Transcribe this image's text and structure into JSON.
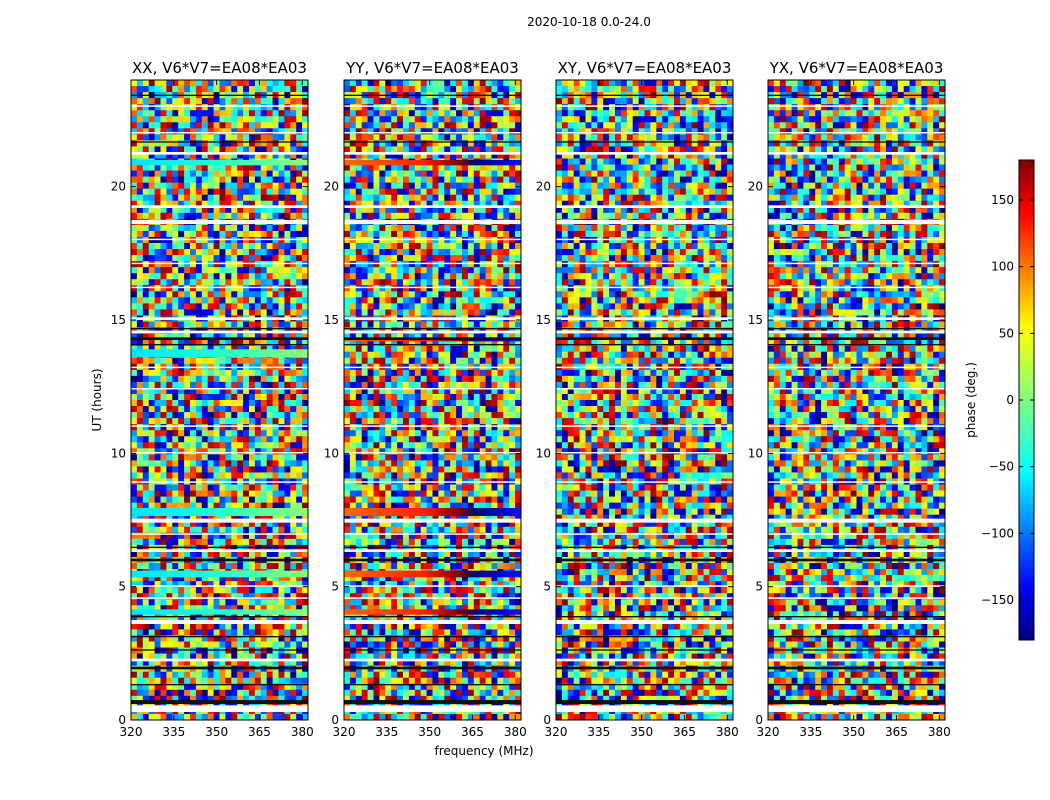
{
  "chart_data": {
    "type": "heatmap",
    "suptitle": "2020-10-18 0.0-24.0",
    "xlabel": "frequency (MHz)",
    "ylabel": "UT (hours)",
    "xlim": [
      320,
      382
    ],
    "ylim": [
      0,
      24
    ],
    "xticks": [
      "320",
      "335",
      "350",
      "365",
      "380"
    ],
    "yticks": [
      "0",
      "5",
      "10",
      "15",
      "20"
    ],
    "panels": [
      {
        "title": "XX, V6*V7=EA08*EA03"
      },
      {
        "title": "YY, V6*V7=EA08*EA03"
      },
      {
        "title": "XY, V6*V7=EA08*EA03"
      },
      {
        "title": "YX, V6*V7=EA08*EA03"
      }
    ],
    "colorbar": {
      "label": "phase (deg.)",
      "range": [
        -180,
        180
      ],
      "ticks": [
        "150",
        "100",
        "50",
        "0",
        "−50",
        "−100",
        "−150"
      ],
      "colormap": "jet"
    }
  }
}
